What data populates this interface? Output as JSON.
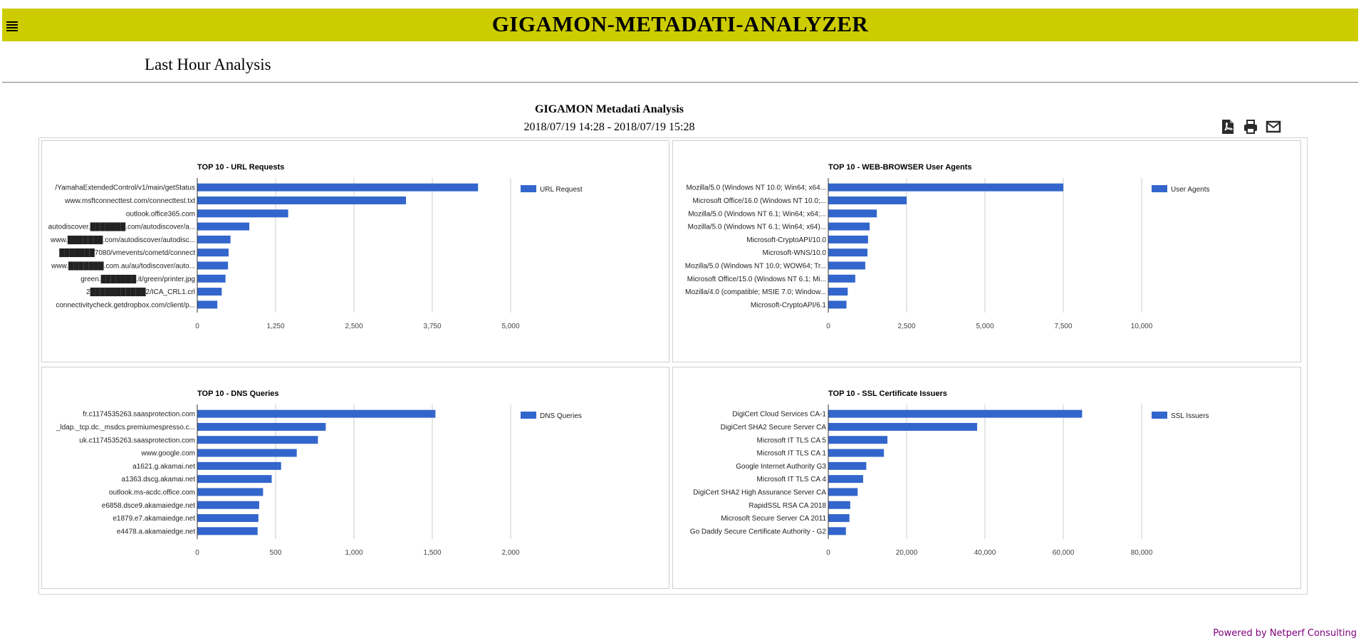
{
  "header": {
    "app_title": "GIGAMON-METADATI-ANALYZER",
    "menu_icon": "hamburger-icon",
    "bar_color": "#cccc00"
  },
  "page": {
    "title": "Last Hour Analysis"
  },
  "report": {
    "title": "GIGAMON Metadati Analysis",
    "range": "2018/07/19 14:28 - 2018/07/19 15:28",
    "actions": [
      {
        "name": "pdf-export",
        "icon": "pdf-icon"
      },
      {
        "name": "print",
        "icon": "printer-icon"
      },
      {
        "name": "email",
        "icon": "envelope-icon"
      }
    ]
  },
  "footer": {
    "text": "Powered by Netperf Consulting"
  },
  "colors": {
    "bar": "#3366cc",
    "grid": "#cccccc",
    "footer": "#800080"
  },
  "chart_data": [
    {
      "type": "bar",
      "orientation": "horizontal",
      "title": "TOP 10 - URL Requests",
      "categories": [
        "/YamahaExtendedControl/v1/main/getStatus",
        "www.msftconnecttest.com/connecttest.txt",
        "outlook.office365.com",
        "autodiscover.███████.com/autodiscover/a...",
        "www.███████.com/autodiscover/autodisc...",
        "███████7080/vmevents/cometd/connect",
        "www.███████.com.au/au/todiscover/auto...",
        "green.███████.it/green/printer.jpg",
        "2███████████2/ICA_CRL1.crl",
        "connectivitycheck.getdropbox.com/client/p..."
      ],
      "series": [
        {
          "name": "URL Request",
          "values": [
            4480,
            3330,
            1450,
            830,
            530,
            500,
            490,
            450,
            390,
            320
          ]
        }
      ],
      "xlim": [
        0,
        5000
      ],
      "ticks": [
        0,
        1250,
        2500,
        3750,
        5000
      ],
      "tick_labels": [
        "0",
        "1,250",
        "2,500",
        "3,750",
        "5,000"
      ],
      "legend": "right",
      "grid": true
    },
    {
      "type": "bar",
      "orientation": "horizontal",
      "title": "TOP 10 - WEB-BROWSER User Agents",
      "categories": [
        "Mozilla/5.0 (Windows NT 10.0; Win64; x64...",
        "Microsoft Office/16.0 (Windows NT 10.0;...",
        "Mozilla/5.0 (Windows NT 6.1; Win64; x64;...",
        "Mozilla/5.0 (Windows NT 6.1; Win64; x64)...",
        "Microsoft-CryptoAPI/10.0",
        "Microsoft-WNS/10.0",
        "Mozilla/5.0 (Windows NT 10.0; WOW64; Tr...",
        "Microsoft Office/15.0 (Windows NT 6.1; Mi...",
        "Mozilla/4.0 (compatible; MSIE 7.0; Window...",
        "Microsoft-CryptoAPI/6.1"
      ],
      "series": [
        {
          "name": "User Agents",
          "values": [
            7500,
            2500,
            1550,
            1320,
            1270,
            1250,
            1180,
            860,
            620,
            580
          ]
        }
      ],
      "xlim": [
        0,
        10000
      ],
      "ticks": [
        0,
        2500,
        5000,
        7500,
        10000
      ],
      "tick_labels": [
        "0",
        "2,500",
        "5,000",
        "7,500",
        "10,000"
      ],
      "legend": "right",
      "grid": true
    },
    {
      "type": "bar",
      "orientation": "horizontal",
      "title": "TOP 10 - DNS Queries",
      "categories": [
        "fr.c1174535263.saasprotection.com",
        "_ldap._tcp.dc._msdcs.premiumespresso.c...",
        "uk.c1174535263.saasprotection.com",
        "www.google.com",
        "a1621.g.akamai.net",
        "a1363.dscg.akamai.net",
        "outlook.ms-acdc.office.com",
        "e6858.dsce9.akamaiedge.net",
        "e1879.e7.akamaiedge.net",
        "e4478.a.akamaiedge.net"
      ],
      "series": [
        {
          "name": "DNS Queries",
          "values": [
            1520,
            820,
            770,
            635,
            535,
            475,
            420,
            395,
            390,
            385
          ]
        }
      ],
      "xlim": [
        0,
        2000
      ],
      "ticks": [
        0,
        500,
        1000,
        1500,
        2000
      ],
      "tick_labels": [
        "0",
        "500",
        "1,000",
        "1,500",
        "2,000"
      ],
      "legend": "right",
      "grid": true
    },
    {
      "type": "bar",
      "orientation": "horizontal",
      "title": "TOP 10 - SSL Certificate Issuers",
      "categories": [
        "DigiCert Cloud Services CA-1",
        "DigiCert SHA2 Secure Server CA",
        "Microsoft IT TLS CA 5",
        "Microsoft IT TLS CA 1",
        "Google Internet Authority G3",
        "Microsoft IT TLS CA 4",
        "DigiCert SHA2 High Assurance Server CA",
        "RapidSSL RSA CA 2018",
        "Microsoft Secure Server CA 2011",
        "Go Daddy Secure Certificate Authority - G2"
      ],
      "series": [
        {
          "name": "SSL Issuers",
          "values": [
            64800,
            38000,
            15100,
            14200,
            9700,
            8900,
            7500,
            5600,
            5400,
            4500
          ]
        }
      ],
      "xlim": [
        0,
        80000
      ],
      "ticks": [
        0,
        20000,
        40000,
        60000,
        80000
      ],
      "tick_labels": [
        "0",
        "20,000",
        "40,000",
        "60,000",
        "80,000"
      ],
      "legend": "right",
      "grid": true
    }
  ]
}
